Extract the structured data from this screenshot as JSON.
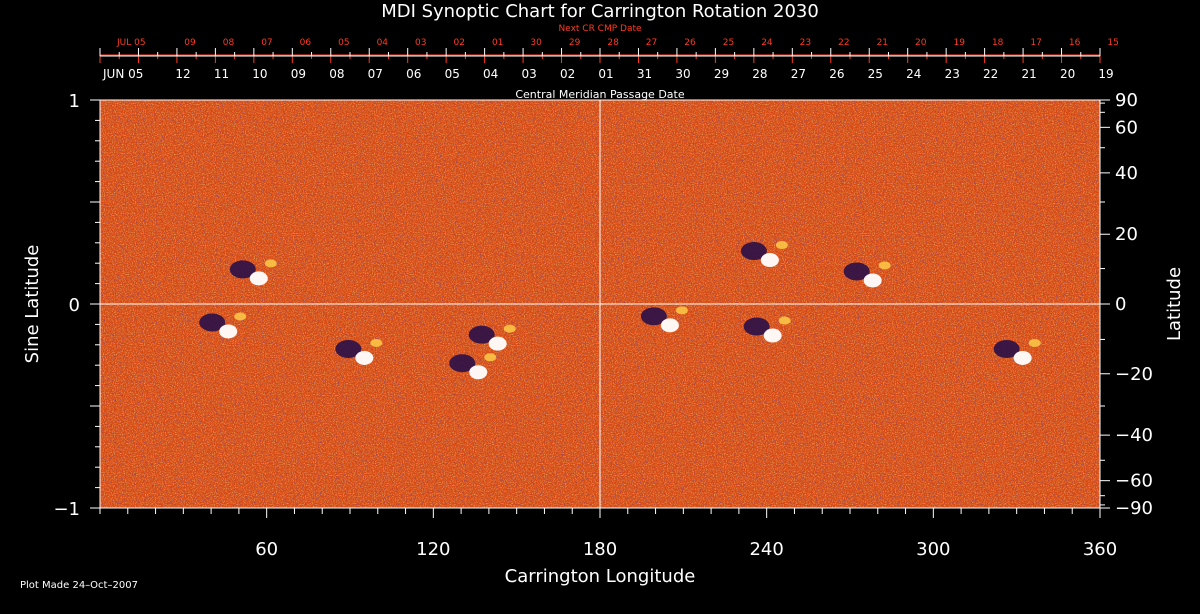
{
  "chart_data": {
    "type": "heatmap",
    "title": "MDI Synoptic Chart for Carrington Rotation 2030",
    "xlabel": "Carrington Longitude",
    "ylabel_left": "Sine Latitude",
    "ylabel_right": "Latitude",
    "xlim": [
      0,
      360
    ],
    "ylim": [
      -1,
      1
    ],
    "x_ticks": [
      60,
      120,
      180,
      240,
      300,
      360
    ],
    "y_ticks_left": [
      {
        "value": 1,
        "label": "1"
      },
      {
        "value": 0,
        "label": "0"
      },
      {
        "value": -1,
        "label": "−1"
      }
    ],
    "y_ticks_right_deg": [
      90,
      60,
      40,
      20,
      0,
      -20,
      -40,
      -60,
      -90
    ],
    "y_ticks_right_labels": [
      "90",
      "60",
      "40",
      "20",
      "0",
      "−20",
      "−40",
      "−60",
      "−90"
    ],
    "grid_lines": {
      "longitude": 180,
      "sine_latitude": 0
    },
    "top_axis_cmp": {
      "label": "Central Meridian Passage Date",
      "start_label": "JUN 05",
      "dates": [
        "12",
        "11",
        "10",
        "09",
        "08",
        "07",
        "06",
        "05",
        "04",
        "03",
        "02",
        "01",
        "31",
        "30",
        "29",
        "28",
        "27",
        "26",
        "25",
        "24",
        "23",
        "22",
        "21",
        "20",
        "19"
      ]
    },
    "top_axis_next_cr": {
      "label": "Next CR CMP Date",
      "start_label": "JUL 05",
      "dates": [
        "09",
        "08",
        "07",
        "06",
        "05",
        "04",
        "03",
        "02",
        "01",
        "30",
        "29",
        "28",
        "27",
        "26",
        "25",
        "24",
        "23",
        "22",
        "21",
        "20",
        "19",
        "18",
        "17",
        "16",
        "15"
      ]
    },
    "active_regions": [
      {
        "lon": 55,
        "sinlat": 0.15,
        "type": "bipole"
      },
      {
        "lon": 44,
        "sinlat": -0.11,
        "type": "bipole"
      },
      {
        "lon": 93,
        "sinlat": -0.24,
        "type": "bipole"
      },
      {
        "lon": 141,
        "sinlat": -0.17,
        "type": "bipole"
      },
      {
        "lon": 134,
        "sinlat": -0.31,
        "type": "bipole"
      },
      {
        "lon": 203,
        "sinlat": -0.08,
        "type": "bipole"
      },
      {
        "lon": 239,
        "sinlat": 0.24,
        "type": "bipole"
      },
      {
        "lon": 240,
        "sinlat": -0.13,
        "type": "bipole"
      },
      {
        "lon": 276,
        "sinlat": 0.14,
        "type": "bipole"
      },
      {
        "lon": 330,
        "sinlat": -0.24,
        "type": "bipole"
      }
    ],
    "colors": {
      "background": "#000000",
      "base": "#d84a12",
      "negative": "#2a1048",
      "positive": "#ffffff",
      "top_axis_red": "#ff3b1f",
      "line": "#ffffff"
    },
    "footer": "Plot Made 24–Oct–2007"
  }
}
